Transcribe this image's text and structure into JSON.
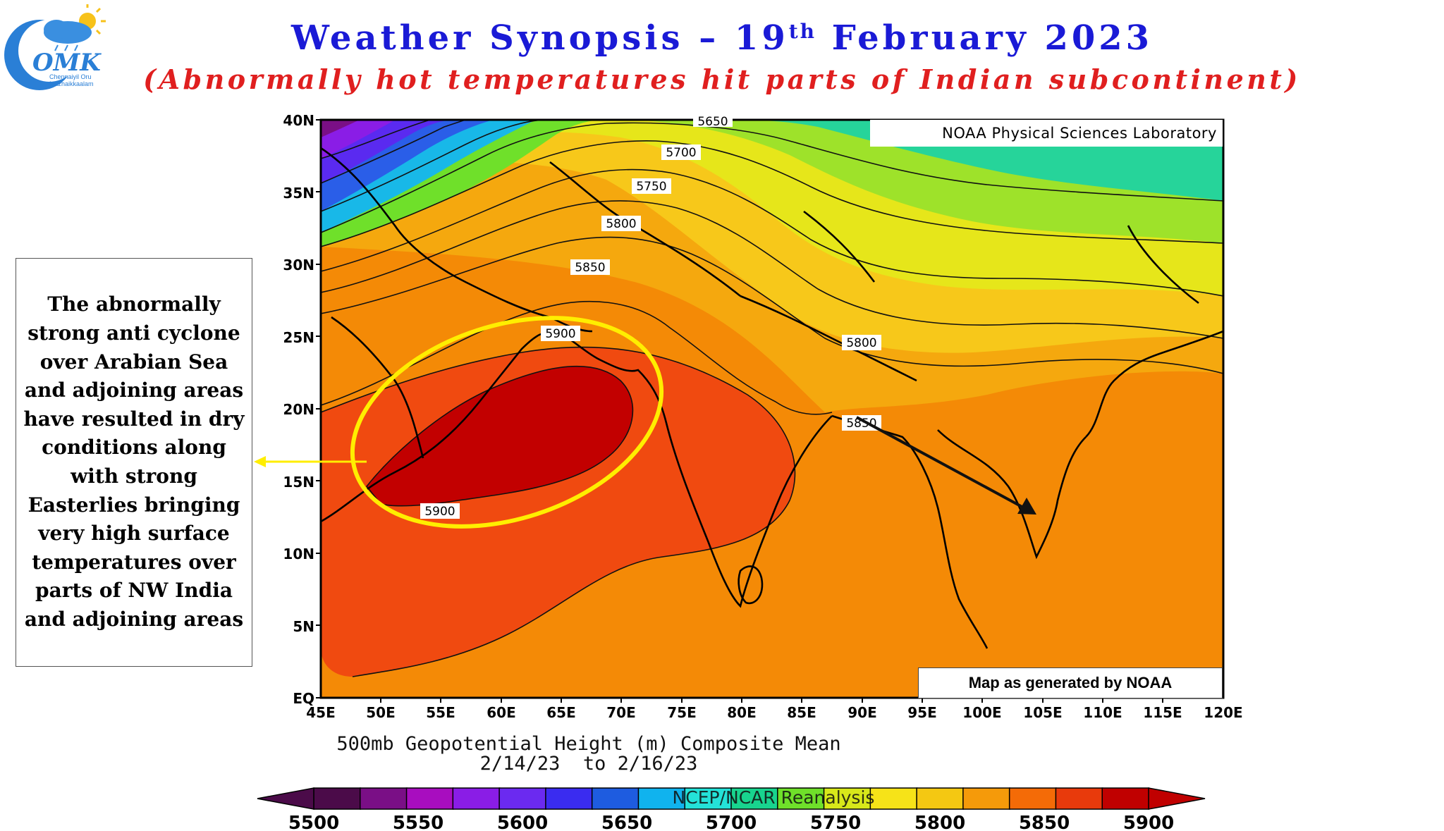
{
  "header": {
    "title_prefix": "Weather Synopsis – 19",
    "title_sup": "th",
    "title_suffix": " February 2023",
    "subtitle": "(Abnormally hot temperatures hit parts of Indian subcontinent)"
  },
  "logo": {
    "brand": "OMK",
    "line1": "Chennaiyil Oru",
    "line2": "Mazhaikkaalam"
  },
  "annotation": {
    "text": "The abnormally strong anti cyclone over Arabian Sea and adjoining areas have resulted in dry conditions along with strong Easterlies bringing very high surface temperatures over parts of NW India and adjoining areas"
  },
  "map": {
    "source_label": "NOAA Physical Sciences Laboratory",
    "credit": "Map as generated by NOAA",
    "caption_line1": "500mb Geopotential Height (m) Composite Mean",
    "caption_line2": "2/14/23  to 2/16/23",
    "colorbar_overlay": "NCEP/NCAR Reanalysis",
    "lat_labels": [
      "40N",
      "35N",
      "30N",
      "25N",
      "20N",
      "15N",
      "10N",
      "5N",
      "EQ"
    ],
    "lon_labels": [
      "45E",
      "50E",
      "55E",
      "60E",
      "65E",
      "70E",
      "75E",
      "80E",
      "85E",
      "90E",
      "95E",
      "100E",
      "105E",
      "110E",
      "115E",
      "120E"
    ],
    "contour_labels": [
      "5650",
      "5700",
      "5750",
      "5800",
      "5850",
      "5900",
      "5900",
      "5800",
      "5850"
    ],
    "colorbar_ticks": [
      "5500",
      "5550",
      "5600",
      "5650",
      "5700",
      "5750",
      "5800",
      "5850",
      "5900"
    ],
    "colorbar_colors": [
      "#4b0b49",
      "#7a0f86",
      "#a80dbf",
      "#8a1de6",
      "#6b2af0",
      "#3a2cf0",
      "#1e5ce0",
      "#10b3ee",
      "#24e2d8",
      "#18d48e",
      "#6fe02a",
      "#d8e81a",
      "#f6e318",
      "#f4c812",
      "#f59a0a",
      "#f46b07",
      "#e83a0c",
      "#c00000"
    ],
    "accent_yellow": "#ffee00",
    "arrow_color": "#111111"
  }
}
